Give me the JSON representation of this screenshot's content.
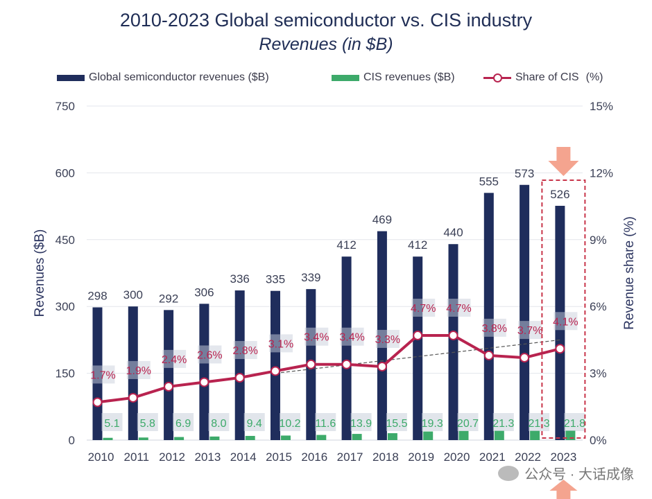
{
  "chart_data": {
    "type": "bar",
    "title": "2010-2023 Global semiconductor vs. CIS industry",
    "subtitle": "Revenues (in $B)",
    "categories": [
      "2010",
      "2011",
      "2012",
      "2013",
      "2014",
      "2015",
      "2016",
      "2017",
      "2018",
      "2019",
      "2020",
      "2021",
      "2022",
      "2023"
    ],
    "series": [
      {
        "name": "Global semiconductor revenues ($B)",
        "type": "bar",
        "axis": "left",
        "color": "#1f2d5c",
        "values": [
          298,
          300,
          292,
          306,
          336,
          335,
          339,
          412,
          469,
          412,
          440,
          555,
          573,
          526
        ],
        "labels": [
          "298",
          "300",
          "292",
          "306",
          "336",
          "335",
          "339",
          "412",
          "469",
          "412",
          "440",
          "555",
          "573",
          "526"
        ]
      },
      {
        "name": "CIS revenues ($B)",
        "type": "bar",
        "axis": "left",
        "color": "#3daa6a",
        "values": [
          5.1,
          5.8,
          6.9,
          8.0,
          9.4,
          10.2,
          11.6,
          13.9,
          15.5,
          19.3,
          20.7,
          21.3,
          21.3,
          21.8
        ],
        "labels": [
          "5.1",
          "5.8",
          "6.9",
          "8.0",
          "9.4",
          "10.2",
          "11.6",
          "13.9",
          "15.5",
          "19.3",
          "20.7",
          "21.3",
          "21.3",
          "21.8"
        ]
      },
      {
        "name": "Share of CIS",
        "unit_label": "(%)",
        "type": "line",
        "axis": "right",
        "color": "#b8234f",
        "values": [
          1.7,
          1.9,
          2.4,
          2.6,
          2.8,
          3.1,
          3.4,
          3.4,
          3.3,
          4.7,
          4.7,
          3.8,
          3.7,
          4.1
        ],
        "labels": [
          "1.7%",
          "1.9%",
          "2.4%",
          "2.6%",
          "2.8%",
          "3.1%",
          "3.4%",
          "3.4%",
          "3.3%",
          "4.7%",
          "4.7%",
          "3.8%",
          "3.7%",
          "4.1%"
        ]
      }
    ],
    "ylabel": "Revenues ($B)",
    "y2label": "Revenue share (%)",
    "ylim": [
      0,
      750
    ],
    "y2lim": [
      0,
      15
    ],
    "yticks": [
      "0",
      "150",
      "300",
      "450",
      "600",
      "750"
    ],
    "y2ticks": [
      "0%",
      "3%",
      "6%",
      "9%",
      "12%",
      "15%"
    ],
    "trend_line": {
      "from_year": "2015",
      "from_value": 3.0,
      "to_year": "2023",
      "to_value": 4.5
    },
    "highlight_year": "2023",
    "grid": true,
    "legend_position": "top"
  },
  "watermark": "公众号 · 大话成像",
  "colors": {
    "navy": "#1f2d5c",
    "green": "#3daa6a",
    "share": "#b8234f",
    "highlight": "#c8354a",
    "arrow": "#f4a48f"
  }
}
